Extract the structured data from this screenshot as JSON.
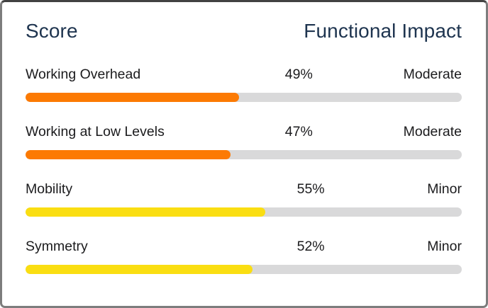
{
  "card": {
    "header": {
      "left": "Score",
      "right": "Functional Impact"
    },
    "rows": [
      {
        "label": "Working Overhead",
        "value": "49%",
        "percent": 49,
        "impact": "Moderate",
        "bar_color": "#fc7a03"
      },
      {
        "label": "Working at Low Levels",
        "value": "47%",
        "percent": 47,
        "impact": "Moderate",
        "bar_color": "#fc7a03"
      },
      {
        "label": "Mobility",
        "value": "55%",
        "percent": 55,
        "impact": "Minor",
        "bar_color": "#fade12"
      },
      {
        "label": "Symmetry",
        "value": "52%",
        "percent": 52,
        "impact": "Minor",
        "bar_color": "#fade12"
      }
    ],
    "colors": {
      "header_text": "#1e344f",
      "body_text": "#1b1b1d",
      "track": "#d9d9da",
      "orange": "#fc7a03",
      "yellow": "#fade12",
      "card_background": "#ffffff",
      "card_border": "#7d7d7d"
    }
  },
  "chart_data": {
    "type": "bar",
    "title": "Score — Functional Impact",
    "categories": [
      "Working Overhead",
      "Working at Low Levels",
      "Mobility",
      "Symmetry"
    ],
    "values": [
      49,
      47,
      55,
      52
    ],
    "value_labels": [
      "49%",
      "47%",
      "55%",
      "52%"
    ],
    "impact_labels": [
      "Moderate",
      "Moderate",
      "Minor",
      "Minor"
    ],
    "bar_colors": [
      "#fc7a03",
      "#fc7a03",
      "#fade12",
      "#fade12"
    ],
    "xlabel": "",
    "ylabel": "",
    "xlim": [
      0,
      100
    ],
    "grid": false,
    "legend": false
  }
}
